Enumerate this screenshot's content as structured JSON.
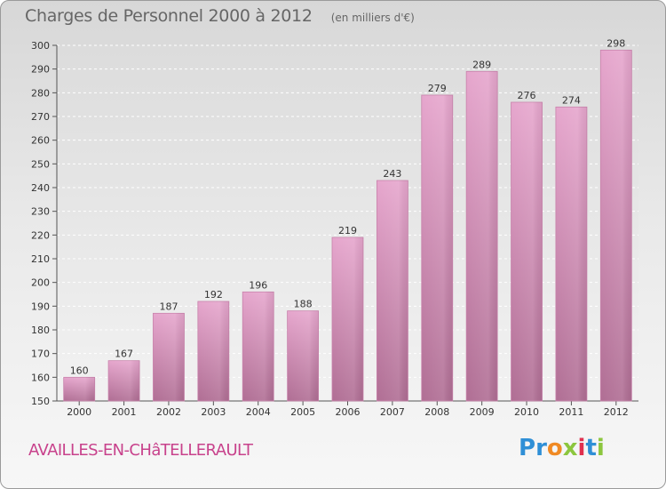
{
  "chart_data": {
    "type": "bar",
    "title": "Charges de Personnel 2000 à 2012",
    "subtitle": "(en milliers d'€)",
    "categories": [
      "2000",
      "2001",
      "2002",
      "2003",
      "2004",
      "2005",
      "2006",
      "2007",
      "2008",
      "2009",
      "2010",
      "2011",
      "2012"
    ],
    "values": [
      160,
      167,
      187,
      192,
      196,
      188,
      219,
      243,
      279,
      289,
      276,
      274,
      298
    ],
    "ylim": [
      150,
      300
    ],
    "yticks": [
      150,
      160,
      170,
      180,
      190,
      200,
      210,
      220,
      230,
      240,
      250,
      260,
      270,
      280,
      290,
      300
    ],
    "grid": true,
    "bar_color": "#d98cb8"
  },
  "footer": {
    "commune": "AVAILLES-EN-CHâTELLERAULT",
    "logo_letters": [
      "P",
      "r",
      "o",
      "x",
      "i",
      "t",
      "i"
    ],
    "logo_colors": [
      "#2f8fd6",
      "#2f8fd6",
      "#f08a24",
      "#8cc63e",
      "#e0304e",
      "#2f8fd6",
      "#8cc63e"
    ]
  }
}
